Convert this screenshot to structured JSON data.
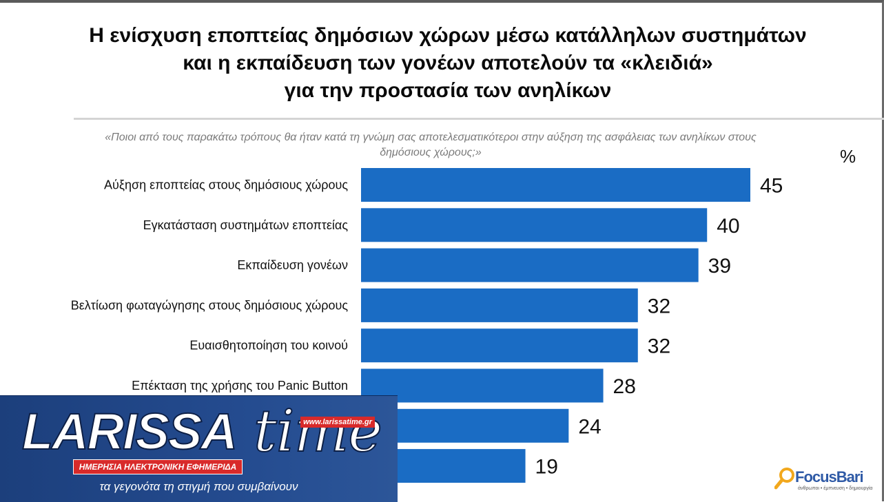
{
  "header": {
    "title_lines": [
      "Η ενίσχυση εποπτείας δημόσιων χώρων μέσω κατάλληλων συστημάτων",
      "και η εκπαίδευση των γονέων αποτελούν τα «κλειδιά»",
      "για την προστασία των ανηλίκων"
    ],
    "question": "«Ποιοι από τους παρακάτω τρόπους θα ήταν κατά τη γνώμη σας αποτελεσματικότεροι στην αύξηση της ασφάλειας των ανηλίκων στους δημόσιους χώρους;»",
    "unit": "%"
  },
  "chart_data": {
    "type": "bar",
    "orientation": "horizontal",
    "categories": [
      "Αύξηση εποπτείας στους δημόσιους χώρους",
      "Εγκατάσταση συστημάτων εποπτείας",
      "Εκπαίδευση γονέων",
      "Βελτίωση φωταγώγησης στους δημόσιους χώρους",
      "Ευαισθητοποίηση του κοινού",
      "Επέκταση της χρήσης του Panic Button",
      "",
      ""
    ],
    "values": [
      45,
      40,
      39,
      32,
      32,
      28,
      24,
      19
    ],
    "bar_color": "#1a6cc4",
    "ylabel": "%",
    "xlim": [
      0,
      45
    ],
    "grid": false,
    "legend": "none"
  },
  "overlay_logo": {
    "wordmark": "LARISSA",
    "script": "time",
    "url": "www.larissatime.gr",
    "subtitle": "ΗΜΕΡΗΣΙΑ ΗΛΕΚΤΡΟΝΙΚΗ ΕΦΗΜΕΡΙΔΑ",
    "tagline": "τα γεγονότα τη στιγμή που συμβαίνουν"
  },
  "brand": {
    "name": "FocusBari",
    "tagline": "άνθρωποι • έμπνευση • δημιουργία",
    "icon": "magnifier-icon",
    "color": "#2f5aa6"
  }
}
